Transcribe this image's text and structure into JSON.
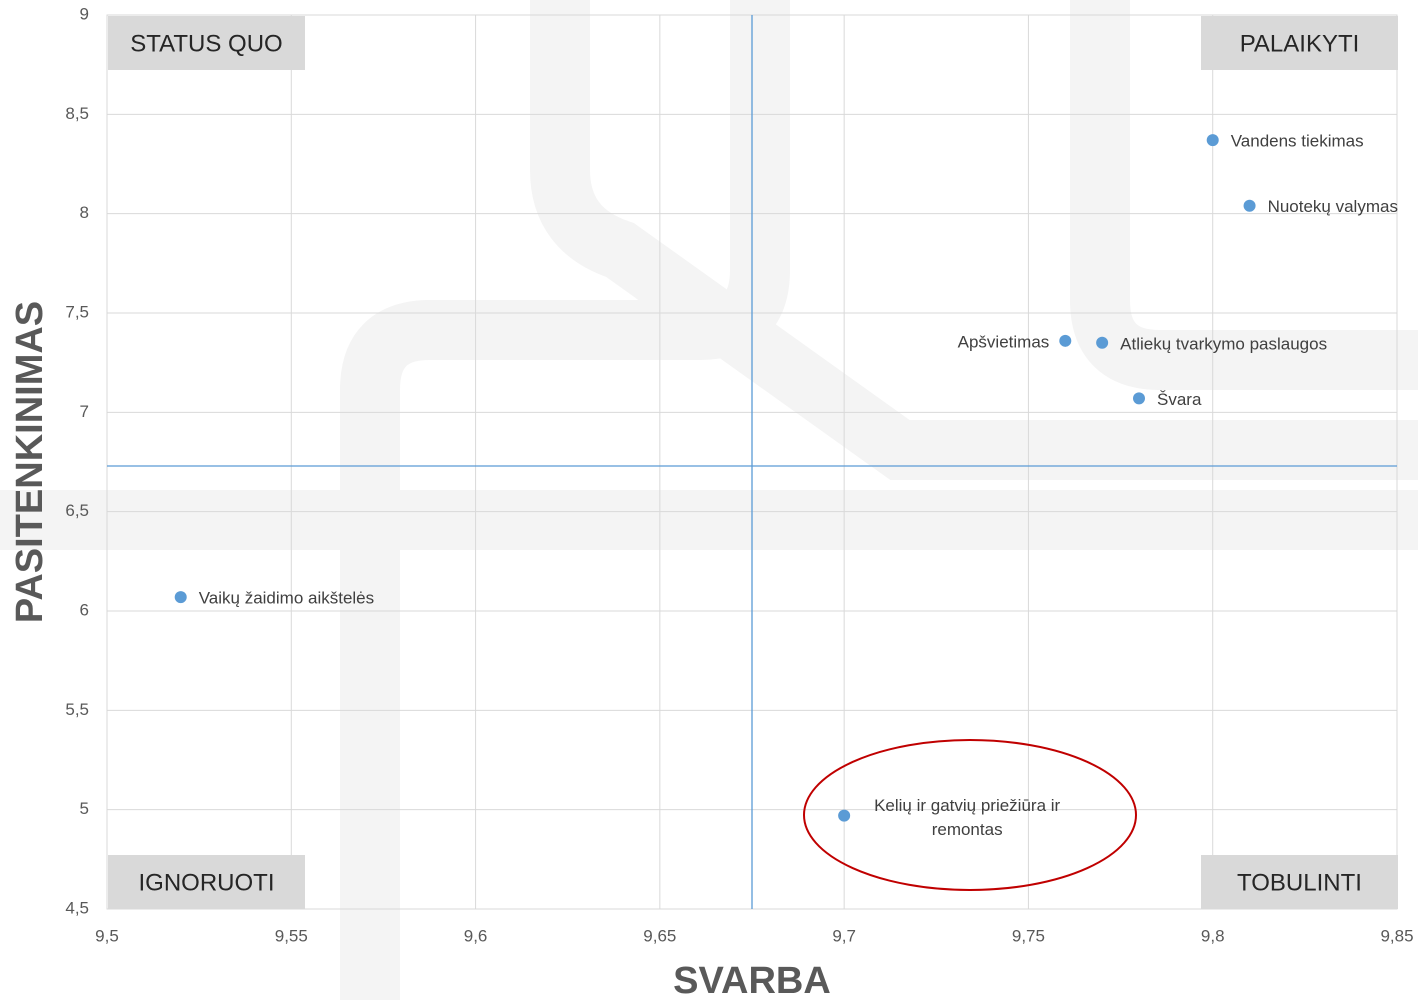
{
  "chart_data": {
    "type": "scatter",
    "x_label": "SVARBA",
    "y_label": "PASITENKINIMAS",
    "x": [
      9.8,
      9.81,
      9.76,
      9.77,
      9.78,
      9.52,
      9.7
    ],
    "values": [
      8.37,
      8.04,
      7.36,
      7.35,
      7.07,
      6.07,
      4.97
    ],
    "point_labels": [
      "Vandens tiekimas",
      "Nuotekų valymas",
      "Apšvietimas",
      "Atliekų tvarkymo paslaugos",
      "Švara",
      "Vaikų žaidimo aikštelės",
      "Kelių ir gatvių priežiūra ir remontas"
    ],
    "label_sides": [
      "right",
      "right",
      "left",
      "right",
      "right",
      "right",
      "right"
    ],
    "color": "#5b9bd5",
    "xlim": [
      9.5,
      9.85
    ],
    "ylim": [
      4.5,
      9
    ],
    "xticks": [
      {
        "value": 9.5,
        "label": "9,5"
      },
      {
        "value": 9.55,
        "label": "9,55"
      },
      {
        "value": 9.6,
        "label": "9,6"
      },
      {
        "value": 9.65,
        "label": "9,65"
      },
      {
        "value": 9.7,
        "label": "9,7"
      },
      {
        "value": 9.75,
        "label": "9,75"
      },
      {
        "value": 9.8,
        "label": "9,8"
      },
      {
        "value": 9.85,
        "label": "9,85"
      }
    ],
    "yticks": [
      {
        "value": 4.5,
        "label": "4,5"
      },
      5,
      {
        "value": 5.5,
        "label": "5,5"
      },
      6,
      {
        "value": 6.5,
        "label": "6,5"
      },
      7,
      {
        "value": 7.5,
        "label": "7,5"
      },
      8,
      {
        "value": 8.5,
        "label": "8,5"
      },
      9
    ],
    "grid": true,
    "reference_lines": {
      "x": 9.675,
      "y": 6.73
    },
    "quadrant_labels": [
      {
        "text": "STATUS QUO",
        "corner": "top-left"
      },
      {
        "text": "PALAIKYTI",
        "corner": "top-right"
      },
      {
        "text": "IGNORUOTI",
        "corner": "bottom-left"
      },
      {
        "text": "TOBULINTI",
        "corner": "bottom-right"
      }
    ]
  }
}
